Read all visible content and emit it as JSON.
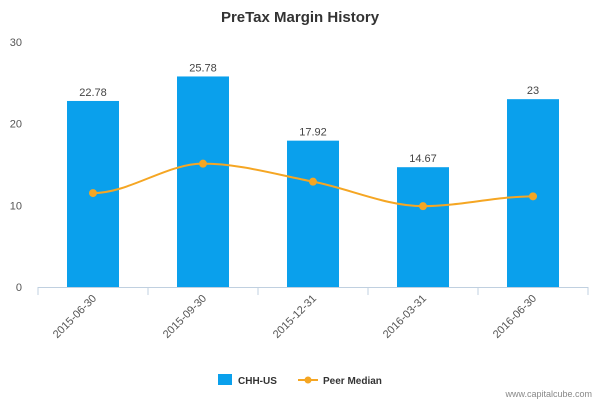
{
  "chart_data": {
    "type": "bar",
    "title": "PreTax Margin History",
    "categories": [
      "2015-06-30",
      "2015-09-30",
      "2015-12-31",
      "2016-03-31",
      "2016-06-30"
    ],
    "series": [
      {
        "name": "CHH-US",
        "type": "bar",
        "values": [
          22.78,
          25.78,
          17.92,
          14.67,
          23
        ],
        "labels": [
          "22.78",
          "25.78",
          "17.92",
          "14.67",
          "23"
        ],
        "color": "#0aa0ec"
      },
      {
        "name": "Peer Median",
        "type": "line",
        "values": [
          11.5,
          15.1,
          12.9,
          9.9,
          11.1
        ],
        "color": "#f5a623"
      }
    ],
    "ylim": [
      0,
      30
    ],
    "yticks": [
      "0",
      "10",
      "20",
      "30"
    ],
    "xlabel": "",
    "ylabel": "",
    "legend": "bottom-center"
  },
  "watermark": "www.capitalcube.com"
}
